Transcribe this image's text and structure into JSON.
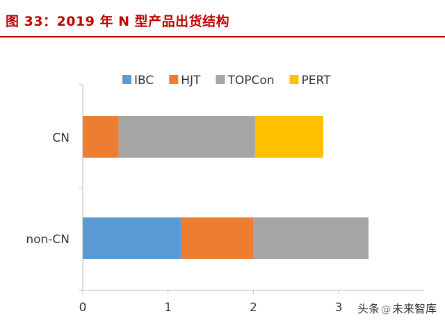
{
  "figure": {
    "title": "图 33：2019 年 N 型产品出货结构",
    "title_color": "#c00000"
  },
  "chart_data": {
    "type": "bar",
    "orientation": "horizontal",
    "stacked": true,
    "title": "图 33：2019 年 N 型产品出货结构",
    "categories": [
      "CN",
      "non-CN"
    ],
    "series": [
      {
        "name": "IBC",
        "color": "#5b9bd5",
        "values": [
          0,
          1.15
        ]
      },
      {
        "name": "HJT",
        "color": "#ed7d31",
        "values": [
          0.42,
          0.85
        ]
      },
      {
        "name": "TOPCon",
        "color": "#a5a5a5",
        "values": [
          1.6,
          1.35
        ]
      },
      {
        "name": "PERT",
        "color": "#ffc000",
        "values": [
          0.8,
          0
        ]
      }
    ],
    "xlim": [
      0,
      3.85
    ],
    "xticks": [
      "0",
      "1",
      "2",
      "3"
    ],
    "xlabel": "",
    "ylabel": "",
    "legend_position": "top",
    "grid": false
  },
  "watermark": {
    "source_label": "头条",
    "icon": "at-icon",
    "author": "未来智库"
  }
}
